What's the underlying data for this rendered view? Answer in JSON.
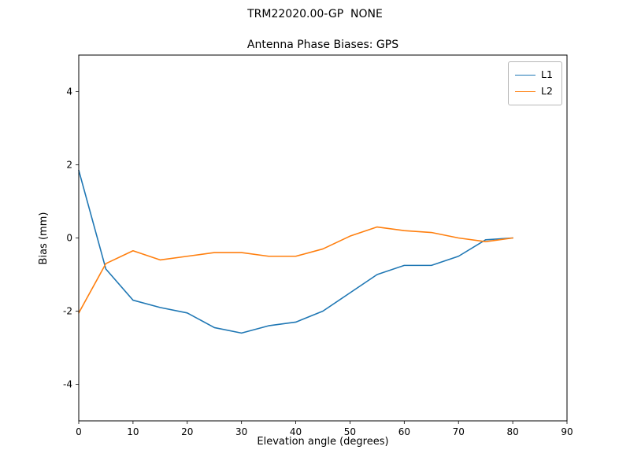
{
  "figure": {
    "suptitle": "TRM22020.00-GP  NONE"
  },
  "chart_data": {
    "type": "line",
    "title": "Antenna Phase Biases: GPS",
    "suptitle": "TRM22020.00-GP  NONE",
    "xlabel": "Elevation angle (degrees)",
    "ylabel": "Bias (mm)",
    "xlim": [
      0,
      90
    ],
    "ylim": [
      -5,
      5
    ],
    "xticks": [
      0,
      10,
      20,
      30,
      40,
      50,
      60,
      70,
      80,
      90
    ],
    "yticks": [
      -4,
      -2,
      0,
      2,
      4
    ],
    "grid": false,
    "legend_position": "upper right",
    "x": [
      0,
      5,
      10,
      15,
      20,
      25,
      30,
      35,
      40,
      45,
      50,
      55,
      60,
      65,
      70,
      75,
      80
    ],
    "series": [
      {
        "name": "L1",
        "color": "#1f77b4",
        "values": [
          1.85,
          -0.85,
          -1.7,
          -1.9,
          -2.05,
          -2.45,
          -2.6,
          -2.4,
          -2.3,
          -2.0,
          -1.5,
          -1.0,
          -0.75,
          -0.75,
          -0.5,
          -0.05,
          0.0
        ]
      },
      {
        "name": "L2",
        "color": "#ff7f0e",
        "values": [
          -2.05,
          -0.7,
          -0.35,
          -0.6,
          -0.5,
          -0.4,
          -0.4,
          -0.5,
          -0.5,
          -0.3,
          0.05,
          0.3,
          0.2,
          0.15,
          0.0,
          -0.1,
          0.0
        ]
      }
    ]
  }
}
